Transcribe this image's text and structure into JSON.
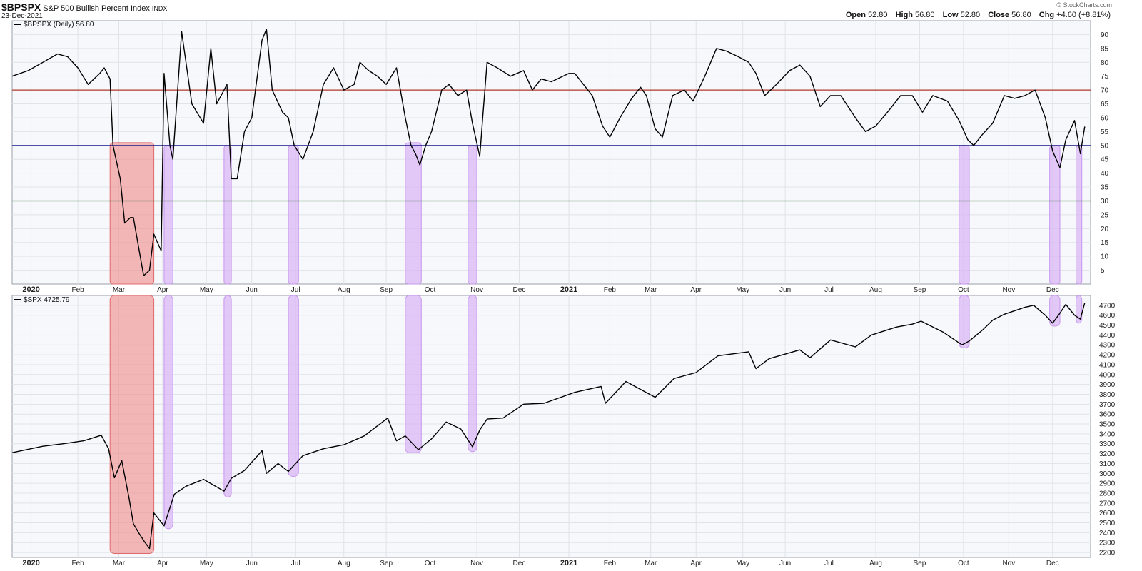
{
  "header": {
    "symbol": "$BPSPX",
    "description": "S&P 500 Bullish Percent Index",
    "exchange": "INDX",
    "date": "23-Dec-2021",
    "open_label": "Open",
    "open": "52.80",
    "high_label": "High",
    "high": "56.80",
    "low_label": "Low",
    "low": "52.80",
    "close_label": "Close",
    "close": "56.80",
    "chg_label": "Chg",
    "chg": "+4.60 (+8.81%)",
    "brand": "© StockCharts.com"
  },
  "colors": {
    "line": "#000000",
    "panel_bg": "#f7f8fb",
    "grid": "#dfe3ea",
    "line70": "#b03a2e",
    "line50": "#1a1a8c",
    "line30": "#2e6b2e",
    "red_band": "#f08a8a",
    "purple_band": "#d9b3f5"
  },
  "chart_data": [
    {
      "type": "line",
      "legend": "$BPSPX (Daily) 56.80",
      "ylim": [
        0,
        95
      ],
      "yticks": [
        5,
        10,
        15,
        20,
        25,
        30,
        35,
        40,
        45,
        50,
        55,
        60,
        65,
        70,
        75,
        80,
        85,
        90
      ],
      "reference_lines": [
        70,
        50,
        30
      ],
      "x_start": "2019-12-20",
      "x_end": "2021-12-27",
      "month_labels": [
        "2020",
        "Feb",
        "Mar",
        "Apr",
        "May",
        "Jun",
        "Jul",
        "Aug",
        "Sep",
        "Oct",
        "Nov",
        "Dec",
        "2021",
        "Feb",
        "Mar",
        "Apr",
        "May",
        "Jun",
        "Jul",
        "Aug",
        "Sep",
        "Oct",
        "Nov",
        "Dec"
      ],
      "month_dates": [
        "2020-01-02",
        "2020-02-03",
        "2020-03-02",
        "2020-04-01",
        "2020-05-01",
        "2020-06-01",
        "2020-07-01",
        "2020-08-03",
        "2020-09-01",
        "2020-10-01",
        "2020-11-02",
        "2020-12-01",
        "2021-01-04",
        "2021-02-01",
        "2021-03-01",
        "2021-04-01",
        "2021-05-03",
        "2021-06-01",
        "2021-07-01",
        "2021-08-02",
        "2021-09-01",
        "2021-10-01",
        "2021-11-01",
        "2021-12-01"
      ],
      "series": [
        {
          "dates": [
            "2019-12-20",
            "2019-12-31",
            "2020-01-10",
            "2020-01-20",
            "2020-01-27",
            "2020-02-03",
            "2020-02-10",
            "2020-02-18",
            "2020-02-21",
            "2020-02-25",
            "2020-02-27",
            "2020-03-03",
            "2020-03-06",
            "2020-03-10",
            "2020-03-12",
            "2020-03-16",
            "2020-03-19",
            "2020-03-23",
            "2020-03-26",
            "2020-03-31",
            "2020-04-02",
            "2020-04-06",
            "2020-04-08",
            "2020-04-14",
            "2020-04-17",
            "2020-04-21",
            "2020-04-29",
            "2020-05-04",
            "2020-05-08",
            "2020-05-13",
            "2020-05-15",
            "2020-05-18",
            "2020-05-22",
            "2020-05-27",
            "2020-06-01",
            "2020-06-08",
            "2020-06-11",
            "2020-06-15",
            "2020-06-22",
            "2020-06-26",
            "2020-06-30",
            "2020-07-06",
            "2020-07-13",
            "2020-07-20",
            "2020-07-27",
            "2020-08-03",
            "2020-08-10",
            "2020-08-14",
            "2020-08-20",
            "2020-08-26",
            "2020-09-01",
            "2020-09-08",
            "2020-09-14",
            "2020-09-18",
            "2020-09-21",
            "2020-09-24",
            "2020-09-28",
            "2020-10-02",
            "2020-10-09",
            "2020-10-14",
            "2020-10-20",
            "2020-10-26",
            "2020-10-30",
            "2020-11-04",
            "2020-11-06",
            "2020-11-09",
            "2020-11-16",
            "2020-11-25",
            "2020-12-04",
            "2020-12-10",
            "2020-12-16",
            "2020-12-23",
            "2021-01-04",
            "2021-01-08",
            "2021-01-14",
            "2021-01-20",
            "2021-01-27",
            "2021-02-01",
            "2021-02-08",
            "2021-02-16",
            "2021-02-22",
            "2021-02-26",
            "2021-03-04",
            "2021-03-09",
            "2021-03-16",
            "2021-03-24",
            "2021-03-30",
            "2021-04-07",
            "2021-04-15",
            "2021-04-22",
            "2021-04-30",
            "2021-05-07",
            "2021-05-12",
            "2021-05-18",
            "2021-05-26",
            "2021-06-04",
            "2021-06-11",
            "2021-06-18",
            "2021-06-25",
            "2021-07-02",
            "2021-07-09",
            "2021-07-19",
            "2021-07-26",
            "2021-08-02",
            "2021-08-10",
            "2021-08-19",
            "2021-08-27",
            "2021-09-03",
            "2021-09-10",
            "2021-09-20",
            "2021-09-28",
            "2021-10-04",
            "2021-10-08",
            "2021-10-14",
            "2021-10-21",
            "2021-10-29",
            "2021-11-05",
            "2021-11-12",
            "2021-11-19",
            "2021-11-26",
            "2021-12-01",
            "2021-12-06",
            "2021-12-10",
            "2021-12-16",
            "2021-12-20",
            "2021-12-23"
          ],
          "values": [
            75,
            77,
            80,
            83,
            82,
            78,
            72,
            76,
            78,
            74,
            50,
            38,
            22,
            24,
            24,
            12,
            3,
            5,
            18,
            12,
            76,
            50,
            45,
            91,
            80,
            65,
            58,
            85,
            65,
            70,
            72,
            38,
            38,
            55,
            60,
            88,
            92,
            70,
            62,
            60,
            50,
            45,
            55,
            72,
            78,
            70,
            72,
            80,
            77,
            75,
            72,
            78,
            60,
            50,
            47,
            43,
            50,
            55,
            70,
            72,
            68,
            70,
            58,
            46,
            60,
            80,
            78,
            75,
            77,
            70,
            74,
            73,
            76,
            76,
            72,
            68,
            57,
            53,
            60,
            67,
            71,
            68,
            56,
            53,
            68,
            70,
            66,
            75,
            85,
            84,
            82,
            80,
            76,
            68,
            72,
            77,
            79,
            75,
            64,
            68,
            68,
            60,
            55,
            57,
            62,
            68,
            68,
            62,
            68,
            66,
            59,
            52,
            50,
            54,
            58,
            68,
            67,
            68,
            70,
            60,
            48,
            42,
            52,
            59,
            47,
            56.8
          ]
        }
      ],
      "highlight_bands": [
        {
          "start": "2020-02-25",
          "end": "2020-03-26",
          "y_top": 51,
          "color": "red"
        },
        {
          "start": "2020-04-02",
          "end": "2020-04-08",
          "y_top": 50,
          "color": "purple"
        },
        {
          "start": "2020-05-13",
          "end": "2020-05-18",
          "y_top": 50,
          "color": "purple"
        },
        {
          "start": "2020-06-26",
          "end": "2020-07-03",
          "y_top": 50,
          "color": "purple"
        },
        {
          "start": "2020-09-14",
          "end": "2020-09-25",
          "y_top": 51,
          "color": "purple"
        },
        {
          "start": "2020-10-27",
          "end": "2020-11-02",
          "y_top": 50,
          "color": "purple"
        },
        {
          "start": "2021-09-28",
          "end": "2021-10-05",
          "y_top": 50,
          "color": "purple"
        },
        {
          "start": "2021-11-29",
          "end": "2021-12-06",
          "y_top": 50,
          "color": "purple"
        },
        {
          "start": "2021-12-17",
          "end": "2021-12-21",
          "y_top": 50,
          "color": "purple"
        }
      ]
    },
    {
      "type": "line",
      "legend": "$SPX 4725.79",
      "ylim": [
        2150,
        4800
      ],
      "yticks": [
        2200,
        2300,
        2400,
        2500,
        2600,
        2700,
        2800,
        2900,
        3000,
        3100,
        3200,
        3300,
        3400,
        3500,
        3600,
        3700,
        3800,
        3900,
        4000,
        4100,
        4200,
        4300,
        4400,
        4500,
        4600,
        4700
      ],
      "series": [
        {
          "dates": [
            "2019-12-20",
            "2020-01-10",
            "2020-01-24",
            "2020-02-07",
            "2020-02-19",
            "2020-02-24",
            "2020-02-28",
            "2020-03-04",
            "2020-03-09",
            "2020-03-12",
            "2020-03-16",
            "2020-03-20",
            "2020-03-23",
            "2020-03-26",
            "2020-04-02",
            "2020-04-09",
            "2020-04-17",
            "2020-04-29",
            "2020-05-13",
            "2020-05-18",
            "2020-05-27",
            "2020-06-08",
            "2020-06-11",
            "2020-06-19",
            "2020-06-26",
            "2020-07-06",
            "2020-07-20",
            "2020-08-03",
            "2020-08-17",
            "2020-09-02",
            "2020-09-08",
            "2020-09-14",
            "2020-09-23",
            "2020-10-02",
            "2020-10-12",
            "2020-10-22",
            "2020-10-30",
            "2020-11-04",
            "2020-11-09",
            "2020-11-20",
            "2020-12-04",
            "2020-12-18",
            "2021-01-08",
            "2021-01-26",
            "2021-01-29",
            "2021-02-12",
            "2021-03-04",
            "2021-03-17",
            "2021-04-01",
            "2021-04-16",
            "2021-05-07",
            "2021-05-12",
            "2021-05-21",
            "2021-06-11",
            "2021-06-18",
            "2021-07-02",
            "2021-07-19",
            "2021-07-30",
            "2021-08-16",
            "2021-08-27",
            "2021-09-02",
            "2021-09-17",
            "2021-09-30",
            "2021-10-05",
            "2021-10-14",
            "2021-10-21",
            "2021-10-29",
            "2021-11-12",
            "2021-11-18",
            "2021-11-26",
            "2021-12-01",
            "2021-12-06",
            "2021-12-10",
            "2021-12-16",
            "2021-12-20",
            "2021-12-23"
          ],
          "values": [
            3210,
            3275,
            3300,
            3330,
            3386,
            3250,
            2955,
            3130,
            2750,
            2490,
            2390,
            2300,
            2240,
            2600,
            2470,
            2790,
            2870,
            2940,
            2820,
            2950,
            3030,
            3230,
            3000,
            3100,
            3020,
            3180,
            3250,
            3290,
            3380,
            3560,
            3330,
            3380,
            3240,
            3350,
            3520,
            3450,
            3270,
            3440,
            3550,
            3560,
            3700,
            3710,
            3820,
            3880,
            3710,
            3930,
            3770,
            3960,
            4020,
            4190,
            4230,
            4060,
            4160,
            4250,
            4170,
            4350,
            4280,
            4400,
            4480,
            4510,
            4540,
            4430,
            4300,
            4340,
            4450,
            4550,
            4610,
            4680,
            4700,
            4600,
            4520,
            4620,
            4710,
            4600,
            4560,
            4725.79
          ]
        }
      ],
      "highlight_bands": [
        {
          "start": "2020-02-25",
          "end": "2020-03-26",
          "y_bottom": 2190,
          "color": "red"
        },
        {
          "start": "2020-04-02",
          "end": "2020-04-08",
          "y_bottom": 2440,
          "color": "purple"
        },
        {
          "start": "2020-05-13",
          "end": "2020-05-18",
          "y_bottom": 2760,
          "color": "purple"
        },
        {
          "start": "2020-06-26",
          "end": "2020-07-03",
          "y_bottom": 2970,
          "color": "purple"
        },
        {
          "start": "2020-09-14",
          "end": "2020-09-25",
          "y_bottom": 3210,
          "color": "purple"
        },
        {
          "start": "2020-10-27",
          "end": "2020-11-02",
          "y_bottom": 3220,
          "color": "purple"
        },
        {
          "start": "2021-09-28",
          "end": "2021-10-05",
          "y_bottom": 4270,
          "color": "purple"
        },
        {
          "start": "2021-11-29",
          "end": "2021-12-06",
          "y_bottom": 4490,
          "color": "purple"
        },
        {
          "start": "2021-12-17",
          "end": "2021-12-21",
          "y_bottom": 4520,
          "color": "purple"
        }
      ]
    }
  ]
}
